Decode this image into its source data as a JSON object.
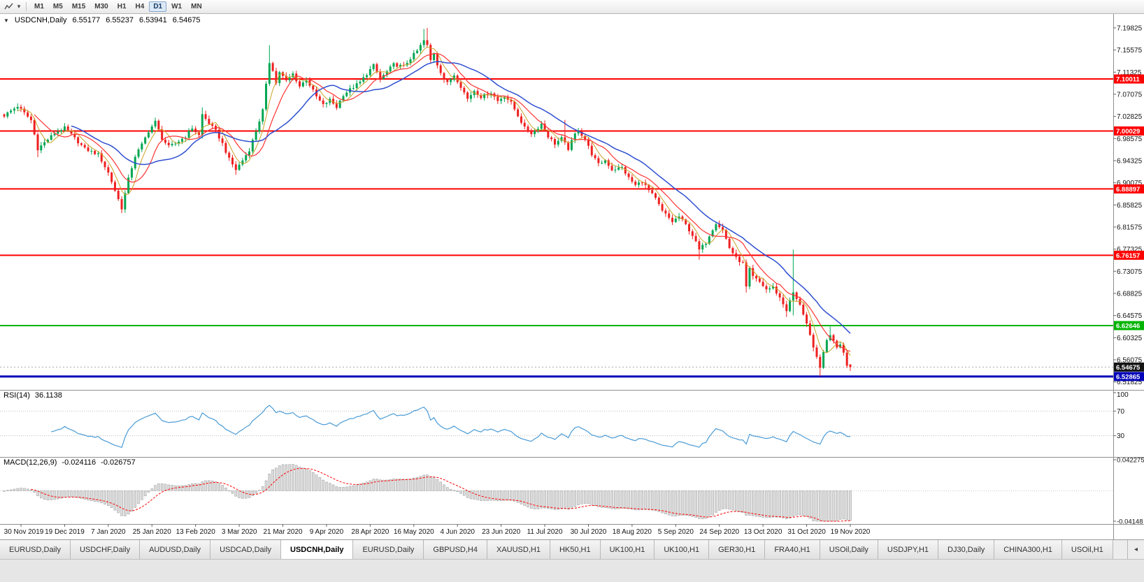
{
  "toolbar": {
    "timeframes": [
      {
        "label": "M1",
        "active": false
      },
      {
        "label": "M5",
        "active": false
      },
      {
        "label": "M15",
        "active": false
      },
      {
        "label": "M30",
        "active": false
      },
      {
        "label": "H1",
        "active": false
      },
      {
        "label": "H4",
        "active": false
      },
      {
        "label": "D1",
        "active": true
      },
      {
        "label": "W1",
        "active": false
      },
      {
        "label": "MN",
        "active": false
      }
    ]
  },
  "tabs": [
    {
      "label": "EURUSD,Daily",
      "active": false
    },
    {
      "label": "USDCHF,Daily",
      "active": false
    },
    {
      "label": "AUDUSD,Daily",
      "active": false
    },
    {
      "label": "USDCAD,Daily",
      "active": false
    },
    {
      "label": "USDCNH,Daily",
      "active": true
    },
    {
      "label": "EURUSD,Daily",
      "active": false
    },
    {
      "label": "GBPUSD,H4",
      "active": false
    },
    {
      "label": "XAUUSD,H1",
      "active": false
    },
    {
      "label": "HK50,H1",
      "active": false
    },
    {
      "label": "UK100,H1",
      "active": false
    },
    {
      "label": "UK100,H1",
      "active": false
    },
    {
      "label": "GER30,H1",
      "active": false
    },
    {
      "label": "FRA40,H1",
      "active": false
    },
    {
      "label": "USOil,Daily",
      "active": false
    },
    {
      "label": "USDJPY,H1",
      "active": false
    },
    {
      "label": "DJ30,Daily",
      "active": false
    },
    {
      "label": "CHINA300,H1",
      "active": false
    },
    {
      "label": "USOil,H1",
      "active": false
    }
  ],
  "tab_scroll_arrow": "◂",
  "chart_data": {
    "type": "candlestick",
    "symbol": "USDCNH",
    "timeframe": "Daily",
    "title": {
      "expander": "▼",
      "symbol": "USDCNH,Daily",
      "open": "6.55177",
      "high": "6.55237",
      "low": "6.53941",
      "close": "6.54675"
    },
    "ylim": [
      6.503,
      7.225
    ],
    "bar_count": 253,
    "y_axis_labels": [
      "7.19825",
      "7.15575",
      "7.11325",
      "7.07075",
      "7.02825",
      "6.98575",
      "6.94325",
      "6.90075",
      "6.85825",
      "6.81575",
      "6.77325",
      "6.73075",
      "6.68825",
      "6.64575",
      "6.60325",
      "6.56075",
      "6.51825"
    ],
    "levels": [
      {
        "value": 7.10011,
        "label": "7.10011",
        "color": "#ff0000",
        "width": 2
      },
      {
        "value": 7.00029,
        "label": "7.00029",
        "color": "#ff0000",
        "width": 2
      },
      {
        "value": 6.88897,
        "label": "6.88897",
        "color": "#ff0000",
        "width": 2
      },
      {
        "value": 6.76157,
        "label": "6.76157",
        "color": "#ff0000",
        "width": 2
      },
      {
        "value": 6.62646,
        "label": "6.62646",
        "color": "#00b400",
        "width": 2
      },
      {
        "value": 6.52865,
        "label": "6.52865",
        "color": "#0000b8",
        "width": 3
      }
    ],
    "current_price": {
      "value": 6.54675,
      "label": "6.54675",
      "bg": "#141414",
      "text": "#ffffff"
    },
    "date_labels": {
      "first_bar": 5,
      "step": 13,
      "labels": [
        "30 Nov 2019",
        "19 Dec 2019",
        "7 Jan 2020",
        "25 Jan 2020",
        "13 Feb 2020",
        "3 Mar 2020",
        "21 Mar 2020",
        "9 Apr 2020",
        "28 Apr 2020",
        "16 May 2020",
        "4 Jun 2020",
        "23 Jun 2020",
        "11 Jul 2020",
        "30 Jul 2020",
        "18 Aug 2020",
        "5 Sep 2020",
        "24 Sep 2020",
        "13 Oct 2020",
        "31 Oct 2020",
        "19 Nov 2020"
      ]
    },
    "price_path": [
      [
        0,
        7.03
      ],
      [
        4,
        7.048
      ],
      [
        8,
        7.021
      ],
      [
        10,
        6.966
      ],
      [
        12,
        6.978
      ],
      [
        15,
        6.996
      ],
      [
        18,
        7.006
      ],
      [
        21,
        6.986
      ],
      [
        24,
        6.966
      ],
      [
        28,
        6.955
      ],
      [
        31,
        6.92
      ],
      [
        33,
        6.886
      ],
      [
        35,
        6.852
      ],
      [
        37,
        6.908
      ],
      [
        39,
        6.952
      ],
      [
        41,
        6.974
      ],
      [
        43,
        7.0
      ],
      [
        45,
        7.018
      ],
      [
        47,
        6.986
      ],
      [
        49,
        6.97
      ],
      [
        51,
        6.976
      ],
      [
        54,
        6.99
      ],
      [
        56,
        7.006
      ],
      [
        58,
        6.992
      ],
      [
        59,
        7.032
      ],
      [
        61,
        7.015
      ],
      [
        63,
        7.0
      ],
      [
        65,
        6.976
      ],
      [
        67,
        6.946
      ],
      [
        69,
        6.926
      ],
      [
        71,
        6.944
      ],
      [
        73,
        6.964
      ],
      [
        75,
        7.0
      ],
      [
        77,
        7.04
      ],
      [
        78,
        7.088
      ],
      [
        79,
        7.132
      ],
      [
        80,
        7.118
      ],
      [
        81,
        7.092
      ],
      [
        82,
        7.114
      ],
      [
        84,
        7.096
      ],
      [
        86,
        7.11
      ],
      [
        88,
        7.086
      ],
      [
        90,
        7.1
      ],
      [
        93,
        7.066
      ],
      [
        95,
        7.05
      ],
      [
        97,
        7.06
      ],
      [
        99,
        7.046
      ],
      [
        101,
        7.07
      ],
      [
        103,
        7.08
      ],
      [
        106,
        7.094
      ],
      [
        108,
        7.11
      ],
      [
        110,
        7.126
      ],
      [
        112,
        7.1
      ],
      [
        114,
        7.114
      ],
      [
        116,
        7.128
      ],
      [
        119,
        7.124
      ],
      [
        121,
        7.14
      ],
      [
        123,
        7.154
      ],
      [
        125,
        7.174
      ],
      [
        126,
        7.164
      ],
      [
        127,
        7.136
      ],
      [
        128,
        7.15
      ],
      [
        129,
        7.128
      ],
      [
        131,
        7.1
      ],
      [
        132,
        7.092
      ],
      [
        134,
        7.108
      ],
      [
        136,
        7.086
      ],
      [
        138,
        7.062
      ],
      [
        140,
        7.078
      ],
      [
        142,
        7.066
      ],
      [
        145,
        7.074
      ],
      [
        147,
        7.058
      ],
      [
        149,
        7.068
      ],
      [
        151,
        7.054
      ],
      [
        153,
        7.03
      ],
      [
        155,
        7.006
      ],
      [
        157,
        6.996
      ],
      [
        158,
        7.0
      ],
      [
        160,
        7.014
      ],
      [
        162,
        6.99
      ],
      [
        164,
        6.976
      ],
      [
        166,
        6.986
      ],
      [
        168,
        6.966
      ],
      [
        170,
        6.994
      ],
      [
        171,
        7.002
      ],
      [
        173,
        6.984
      ],
      [
        175,
        6.956
      ],
      [
        177,
        6.936
      ],
      [
        179,
        6.944
      ],
      [
        181,
        6.926
      ],
      [
        184,
        6.93
      ],
      [
        186,
        6.91
      ],
      [
        188,
        6.896
      ],
      [
        190,
        6.904
      ],
      [
        192,
        6.886
      ],
      [
        194,
        6.87
      ],
      [
        196,
        6.846
      ],
      [
        197,
        6.84
      ],
      [
        199,
        6.826
      ],
      [
        201,
        6.836
      ],
      [
        203,
        6.82
      ],
      [
        205,
        6.8
      ],
      [
        207,
        6.772
      ],
      [
        209,
        6.786
      ],
      [
        210,
        6.8
      ],
      [
        212,
        6.824
      ],
      [
        214,
        6.81
      ],
      [
        216,
        6.776
      ],
      [
        218,
        6.756
      ],
      [
        220,
        6.746
      ],
      [
        221,
        6.7
      ],
      [
        222,
        6.734
      ],
      [
        223,
        6.72
      ],
      [
        225,
        6.71
      ],
      [
        227,
        6.696
      ],
      [
        229,
        6.7
      ],
      [
        231,
        6.68
      ],
      [
        233,
        6.656
      ],
      [
        235,
        6.69
      ],
      [
        236,
        6.676
      ],
      [
        237,
        6.668
      ],
      [
        239,
        6.63
      ],
      [
        241,
        6.582
      ],
      [
        243,
        6.548
      ],
      [
        245,
        6.598
      ],
      [
        246,
        6.61
      ],
      [
        247,
        6.596
      ],
      [
        248,
        6.586
      ],
      [
        249,
        6.592
      ],
      [
        250,
        6.576
      ],
      [
        251,
        6.5518
      ],
      [
        252,
        6.54675
      ]
    ],
    "bar_overrides": [
      {
        "b": 10,
        "l": 6.95
      },
      {
        "b": 35,
        "l": 6.8425
      },
      {
        "b": 45,
        "h": 7.026
      },
      {
        "b": 59,
        "h": 7.0455
      },
      {
        "b": 69,
        "l": 6.916
      },
      {
        "b": 79,
        "h": 7.165
      },
      {
        "b": 125,
        "h": 7.1962
      },
      {
        "b": 126,
        "h": 7.1982
      },
      {
        "b": 167,
        "h": 7.0215
      },
      {
        "b": 207,
        "l": 6.753
      },
      {
        "b": 221,
        "l": 6.69
      },
      {
        "b": 233,
        "l": 6.643
      },
      {
        "b": 235,
        "h": 6.7725,
        "l": 6.646
      },
      {
        "b": 241,
        "l": 6.577
      },
      {
        "b": 243,
        "l": 6.529
      },
      {
        "b": 246,
        "h": 6.6248
      },
      {
        "b": 252,
        "o": 6.55177,
        "h": 6.55237,
        "l": 6.53941,
        "c": 6.54675
      }
    ],
    "moving_averages": [
      {
        "period": 5,
        "color": "#c9a227",
        "width": 1
      },
      {
        "period": 10,
        "color": "#ff3333",
        "width": 1.2
      },
      {
        "period": 21,
        "color": "#2f4fd0",
        "width": 1.5
      }
    ],
    "colors": {
      "up": "#00a651",
      "down": "#ef2020"
    },
    "indicators": {
      "rsi": {
        "name": "RSI(14)",
        "value": "36.1138",
        "period": 14,
        "ylim": [
          0,
          100
        ],
        "color": "#4a9bd6",
        "levels": [
          {
            "label": "100",
            "value": 100,
            "line": false
          },
          {
            "label": "70",
            "value": 70,
            "line": true
          },
          {
            "label": "30",
            "value": 30,
            "line": true
          }
        ]
      },
      "macd": {
        "name": "MACD(12,26,9)",
        "main_value": "-0.024116",
        "signal_value": "-0.026757",
        "fast": 12,
        "slow": 26,
        "signal_period": 9,
        "ylim": [
          -0.04148,
          0.042275
        ],
        "axis_labels": [
          {
            "label": "0.042275",
            "value": 0.042275
          },
          {
            "label": "-0.04148",
            "value": -0.04148
          }
        ],
        "hist_fill": "#dcdcdc",
        "hist_stroke": "#a4a4a4",
        "signal_color": "#ff0000"
      }
    }
  }
}
